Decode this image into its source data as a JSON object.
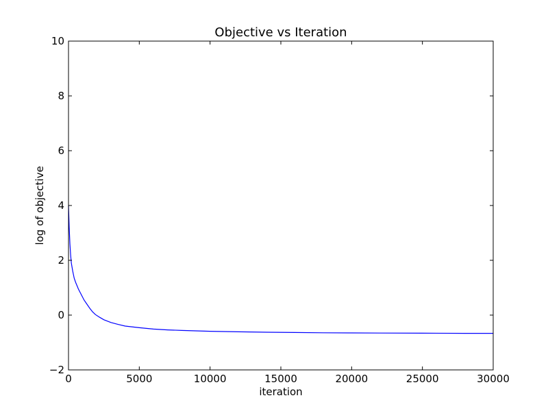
{
  "chart_data": {
    "type": "line",
    "title": "Objective vs Iteration",
    "xlabel": "iteration",
    "ylabel": "log of objective",
    "xlim": [
      0,
      30000
    ],
    "ylim": [
      -2,
      10
    ],
    "xticks": [
      0,
      5000,
      10000,
      15000,
      20000,
      25000,
      30000
    ],
    "yticks": [
      -2,
      0,
      2,
      4,
      6,
      8,
      10
    ],
    "xtick_labels": [
      "0",
      "5000",
      "10000",
      "15000",
      "20000",
      "25000",
      "30000"
    ],
    "ytick_labels": [
      "−2",
      "0",
      "2",
      "4",
      "6",
      "8",
      "10"
    ],
    "grid": false,
    "series": [
      {
        "color": "#0000ff",
        "x": [
          0,
          50,
          100,
          150,
          200,
          300,
          400,
          500,
          700,
          900,
          1100,
          1300,
          1500,
          1700,
          1900,
          2200,
          2500,
          3000,
          3500,
          4000,
          5000,
          6000,
          7000,
          8000,
          10000,
          12000,
          14000,
          16000,
          18000,
          20000,
          22000,
          25000,
          28000,
          30000
        ],
        "y": [
          4.0,
          3.2,
          2.6,
          2.2,
          1.9,
          1.6,
          1.35,
          1.2,
          0.95,
          0.75,
          0.55,
          0.4,
          0.25,
          0.12,
          0.02,
          -0.08,
          -0.17,
          -0.27,
          -0.34,
          -0.4,
          -0.46,
          -0.51,
          -0.54,
          -0.56,
          -0.59,
          -0.61,
          -0.625,
          -0.635,
          -0.645,
          -0.65,
          -0.655,
          -0.66,
          -0.665,
          -0.665
        ]
      }
    ]
  }
}
